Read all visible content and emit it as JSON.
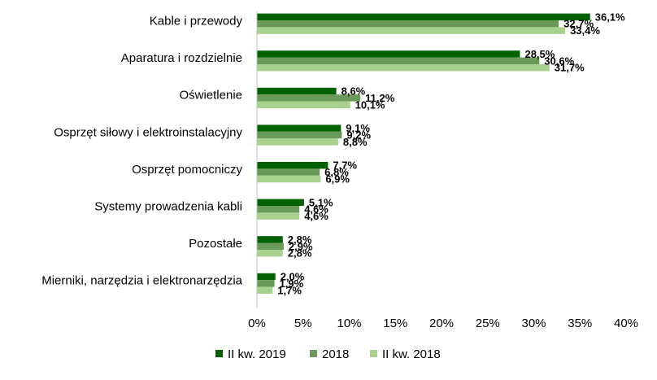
{
  "chart_data": {
    "type": "bar",
    "orientation": "horizontal",
    "categories": [
      "Kable i przewody",
      "Aparatura i rozdzielnie",
      "Oświetlenie",
      "Osprzęt siłowy i elektroinstalacyjny",
      "Osprzęt pomocniczy",
      "Systemy prowadzenia kabli",
      "Pozostałe",
      "Mierniki, narzędzia i elektronarzędzia"
    ],
    "series": [
      {
        "name": "II kw. 2019",
        "color": "#006100",
        "values": [
          36.1,
          28.5,
          8.6,
          9.1,
          7.7,
          5.1,
          2.8,
          2.0
        ],
        "labels": [
          "36,1%",
          "28,5%",
          "8,6%",
          "9,1%",
          "7,7%",
          "5,1%",
          "2,8%",
          "2,0%"
        ]
      },
      {
        "name": "2018",
        "color": "#6a9a5a",
        "values": [
          32.7,
          30.6,
          11.2,
          9.2,
          6.8,
          4.6,
          2.9,
          1.9
        ],
        "labels": [
          "32,7%",
          "30,6%",
          "11,2%",
          "9,2%",
          "6,8%",
          "4,6%",
          "2,9%",
          "1,9%"
        ]
      },
      {
        "name": "II kw. 2018",
        "color": "#a9d18e",
        "values": [
          33.4,
          31.7,
          10.1,
          8.8,
          6.9,
          4.6,
          2.8,
          1.7
        ],
        "labels": [
          "33,4%",
          "31,7%",
          "10,1%",
          "8,8%",
          "6,9%",
          "4,6%",
          "2,8%",
          "1,7%"
        ]
      }
    ],
    "xticks": [
      0,
      5,
      10,
      15,
      20,
      25,
      30,
      35,
      40
    ],
    "xtick_labels": [
      "0%",
      "5%",
      "10%",
      "15%",
      "20%",
      "25%",
      "30%",
      "35%",
      "40%"
    ],
    "xlim": [
      0,
      40
    ],
    "grid": false,
    "legend_position": "bottom",
    "title": "",
    "xlabel": "",
    "ylabel": ""
  }
}
